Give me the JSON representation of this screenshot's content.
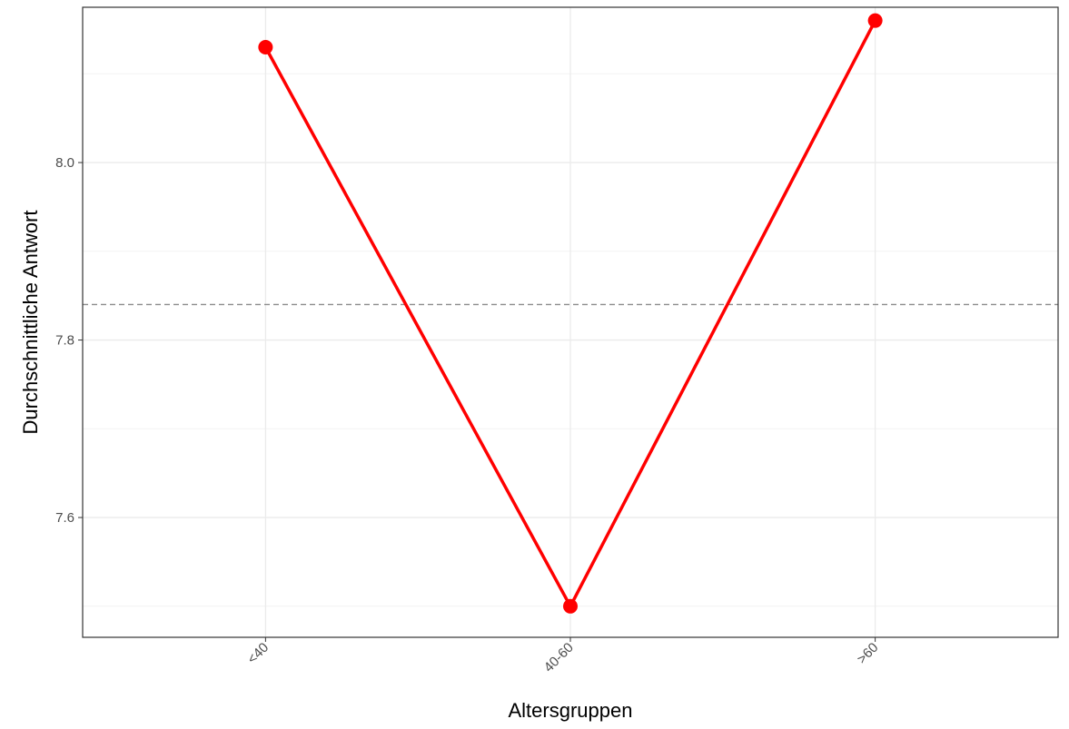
{
  "chart_data": {
    "type": "line",
    "categories": [
      "<40",
      "40-60",
      ">60"
    ],
    "series": [
      {
        "values": [
          8.13,
          7.5,
          8.16
        ],
        "color": "#ff0000"
      }
    ],
    "reference_line": {
      "y": 7.84,
      "style": "dashed",
      "color": "#8c8c8c"
    },
    "xlabel": "Altersgruppen",
    "ylabel": "Durchschnittliche Antwort",
    "ylim": [
      7.465,
      8.175
    ],
    "yticks": [
      7.6,
      7.8,
      8.0
    ],
    "ytick_labels": [
      "7.6",
      "7.8",
      "8.0"
    ],
    "grid": true,
    "theme": "bw"
  }
}
